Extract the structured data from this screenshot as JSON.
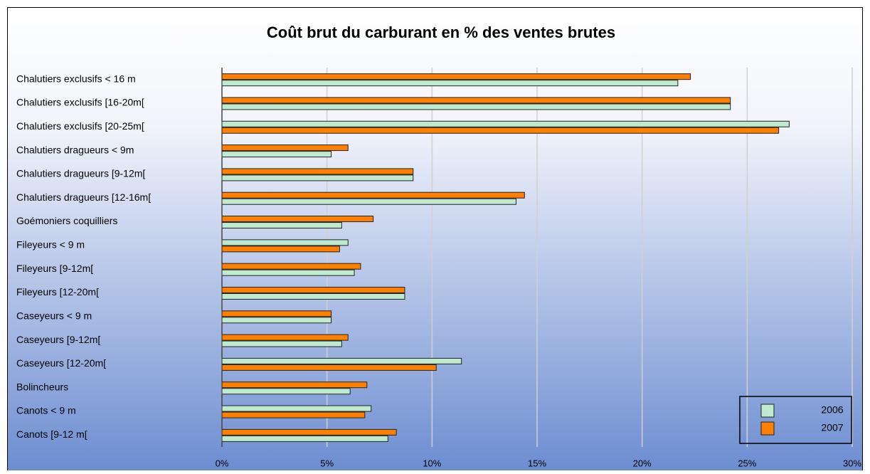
{
  "chart_data": {
    "type": "hbar",
    "title": "Coût brut du carburant en % des ventes brutes",
    "categories": [
      "Chalutiers exclusifs < 16 m",
      "Chalutiers exclusifs [16-20m[",
      "Chalutiers exclusifs [20-25m[",
      "Chalutiers dragueurs < 9m",
      "Chalutiers dragueurs [9-12m[",
      "Chalutiers dragueurs [12-16m[",
      "Goémoniers coquilliers",
      "Fileyeurs < 9 m",
      "Fileyeurs [9-12m[",
      "Fileyeurs [12-20m[",
      "Caseyeurs < 9 m",
      "Caseyeurs [9-12m[",
      "Caseyeurs [12-20m[",
      "Bolincheurs",
      "Canots < 9 m",
      "Canots [9-12 m["
    ],
    "series": [
      {
        "name": "2006",
        "color": "#bfead0",
        "values": [
          21.7,
          24.2,
          27.0,
          5.2,
          9.1,
          14.0,
          5.7,
          6.0,
          6.3,
          8.7,
          5.2,
          5.7,
          11.4,
          6.1,
          7.1,
          7.9
        ]
      },
      {
        "name": "2007",
        "color": "#ff7f00",
        "values": [
          22.3,
          24.2,
          26.5,
          6.0,
          9.1,
          14.4,
          7.2,
          5.6,
          6.6,
          8.7,
          5.2,
          6.0,
          10.2,
          6.9,
          6.8,
          8.3
        ]
      }
    ],
    "xlim": [
      0,
      30
    ],
    "xticks": [
      {
        "value": 0,
        "label": "0%"
      },
      {
        "value": 5,
        "label": "5%"
      },
      {
        "value": 10,
        "label": "10%"
      },
      {
        "value": 15,
        "label": "15%"
      },
      {
        "value": 20,
        "label": "20%"
      },
      {
        "value": 25,
        "label": "25%"
      },
      {
        "value": 30,
        "label": "30%"
      }
    ],
    "grid": true,
    "legend": "lower right"
  }
}
